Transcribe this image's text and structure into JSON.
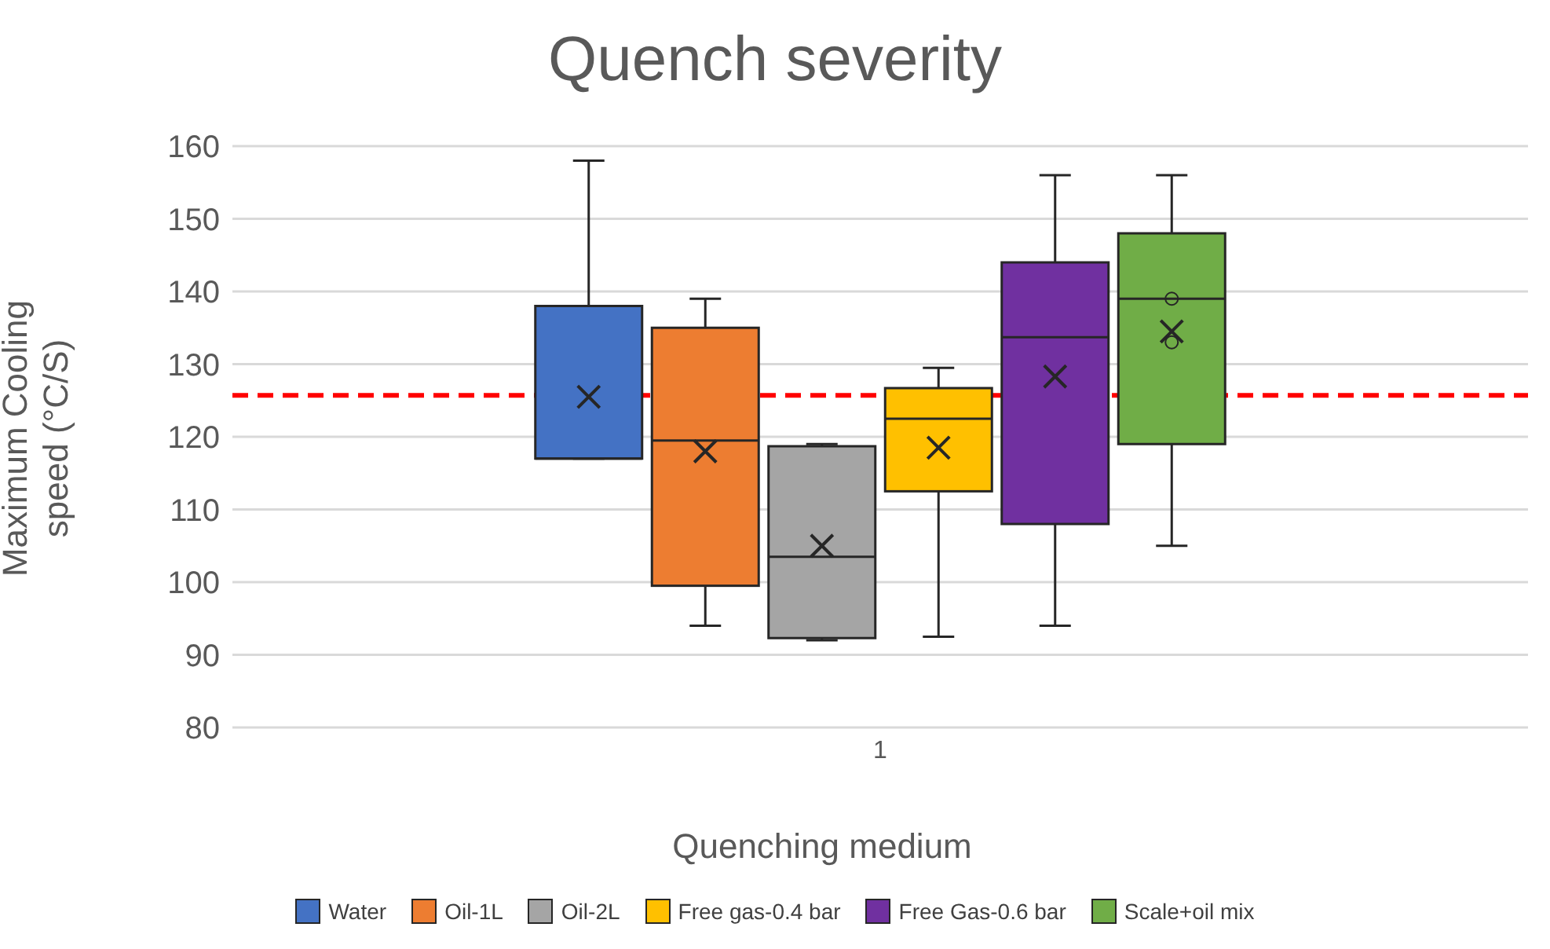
{
  "chart_data": {
    "type": "box",
    "title": "Quench severity",
    "xlabel": "Quenching medium",
    "ylabel": "Maximum Cooling speed (°C/S)",
    "categories": [
      "1"
    ],
    "ylim": [
      80,
      160
    ],
    "yticks": [
      80,
      90,
      100,
      110,
      120,
      130,
      140,
      150,
      160
    ],
    "grid": "y",
    "legend": "bottom",
    "marker": "cross",
    "series": [
      {
        "name": "Water",
        "color": "#4472c4",
        "boxes": [
          {
            "low": 117,
            "q1": 117,
            "median": 117,
            "q3": 138,
            "high": 158,
            "mean": 125.5
          }
        ]
      },
      {
        "name": "Oil-1L",
        "color": "#ed7d31",
        "boxes": [
          {
            "low": 94,
            "q1": 99.5,
            "median": 119.5,
            "q3": 135,
            "high": 139,
            "mean": 118
          }
        ]
      },
      {
        "name": "Oil-2L",
        "color": "#a5a5a5",
        "boxes": [
          {
            "low": 92,
            "q1": 92.3,
            "median": 103.5,
            "q3": 118.7,
            "high": 119,
            "mean": 105
          }
        ]
      },
      {
        "name": "Free gas-0.4 bar",
        "color": "#ffc000",
        "boxes": [
          {
            "low": 92.5,
            "q1": 112.5,
            "median": 122.5,
            "q3": 126.7,
            "high": 129.5,
            "mean": 118.5
          }
        ]
      },
      {
        "name": "Free Gas-0.6 bar",
        "color": "#7030a0",
        "boxes": [
          {
            "low": 94,
            "q1": 108,
            "median": 133.7,
            "q3": 144,
            "high": 156,
            "mean": 128.3
          }
        ]
      },
      {
        "name": "Scale+oil mix",
        "color": "#70ad47",
        "boxes": [
          {
            "low": 105,
            "q1": 119,
            "median": 139,
            "q3": 148,
            "high": 156,
            "mean": 134.5,
            "outliers": [
              139,
              133
            ]
          }
        ]
      }
    ],
    "ref_lines": [
      {
        "axis": "y",
        "value": 125.7,
        "color": "#ff0000",
        "line_style": "dashed"
      }
    ]
  }
}
